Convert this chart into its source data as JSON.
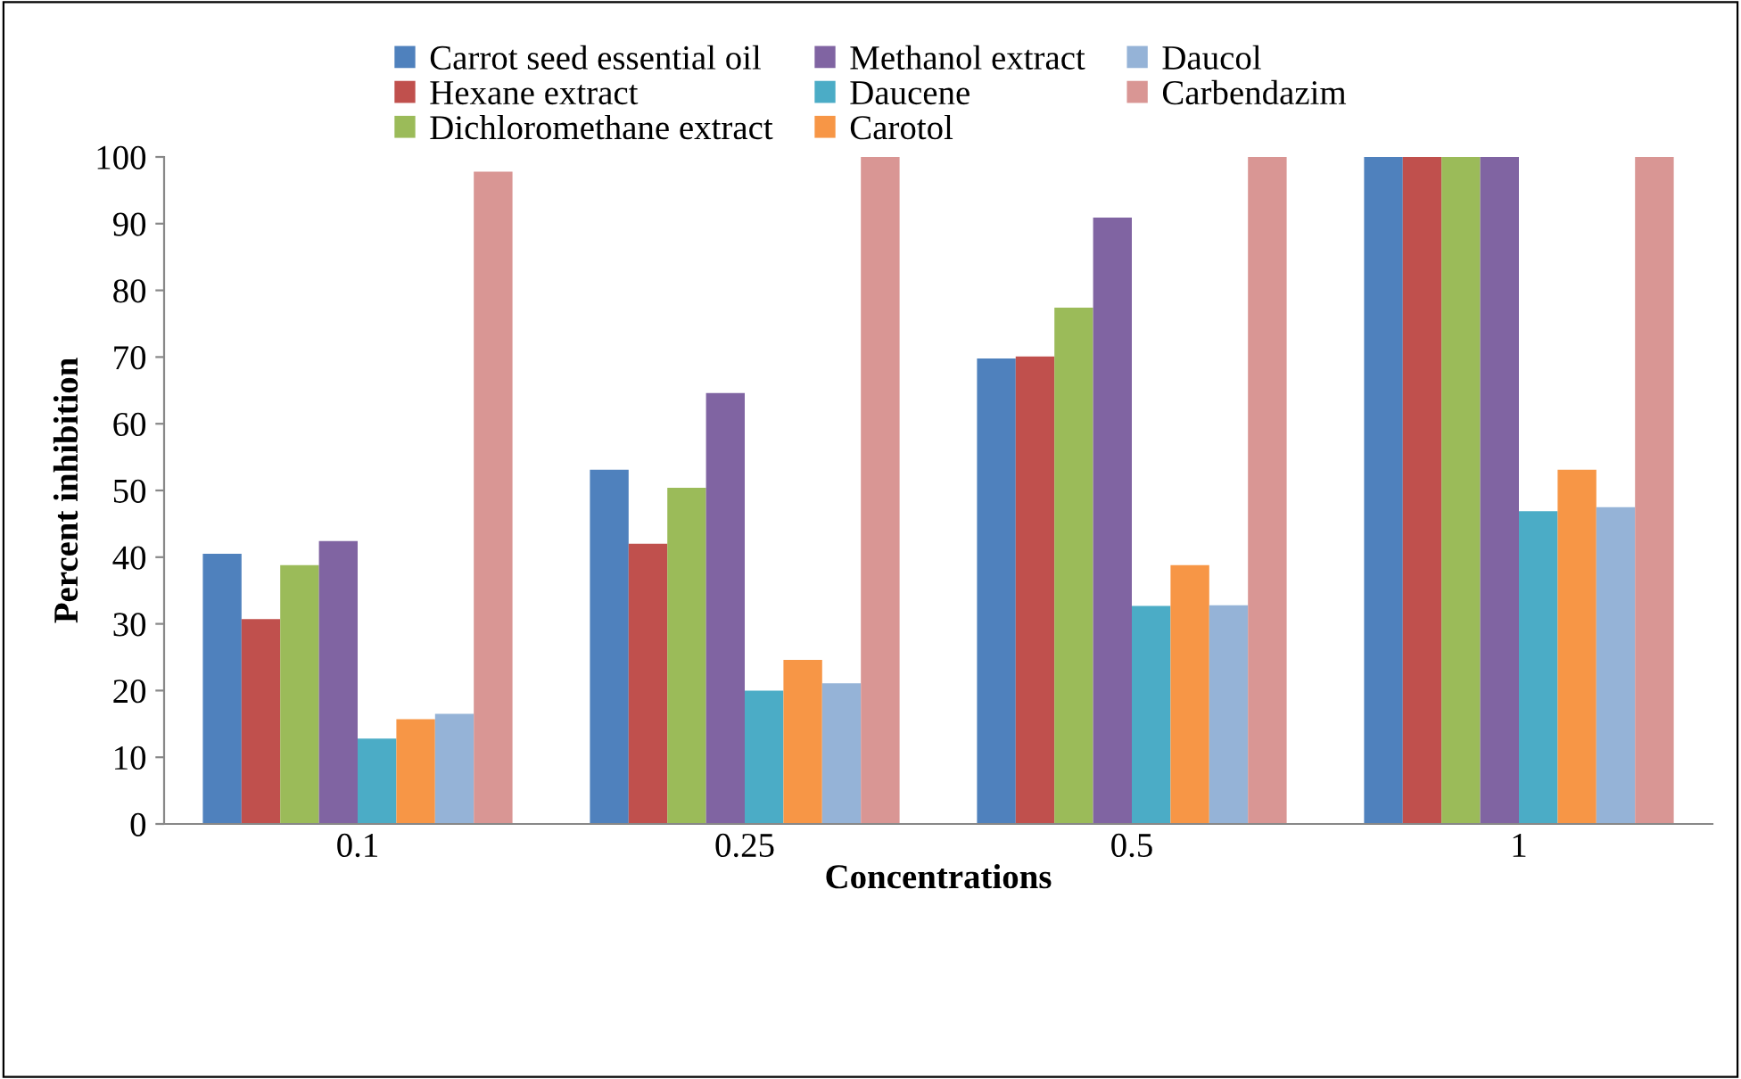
{
  "chart_data": {
    "type": "bar",
    "xlabel": "Concentrations",
    "ylabel": "Percent inhibition",
    "categories": [
      "0.1",
      "0.25",
      "0.5",
      "1"
    ],
    "series": [
      {
        "name": "Carrot seed essential oil",
        "color": "#4f81bd",
        "values": [
          40.5,
          53.1,
          69.8,
          100
        ]
      },
      {
        "name": "Hexane extract",
        "color": "#c0504d",
        "values": [
          30.7,
          42,
          70.1,
          100
        ]
      },
      {
        "name": "Dichloromethane extract",
        "color": "#9bbb59",
        "values": [
          38.8,
          50.4,
          77.4,
          100
        ]
      },
      {
        "name": "Methanol extract",
        "color": "#8064a2",
        "values": [
          42.4,
          64.6,
          90.9,
          100
        ]
      },
      {
        "name": "Daucene",
        "color": "#4bacc6",
        "values": [
          12.8,
          20,
          32.7,
          46.9
        ]
      },
      {
        "name": "Carotol",
        "color": "#f79646",
        "values": [
          15.7,
          24.6,
          38.8,
          53.1
        ]
      },
      {
        "name": "Daucol",
        "color": "#95b3d7",
        "values": [
          16.5,
          21.1,
          32.8,
          47.5
        ]
      },
      {
        "name": "Carbendazim",
        "color": "#d99694",
        "values": [
          97.8,
          100,
          100,
          100
        ]
      }
    ],
    "ylim": [
      0,
      100
    ],
    "yticks": [
      0,
      10,
      20,
      30,
      40,
      50,
      60,
      70,
      80,
      90,
      100
    ],
    "grid": false,
    "legend": "top"
  }
}
